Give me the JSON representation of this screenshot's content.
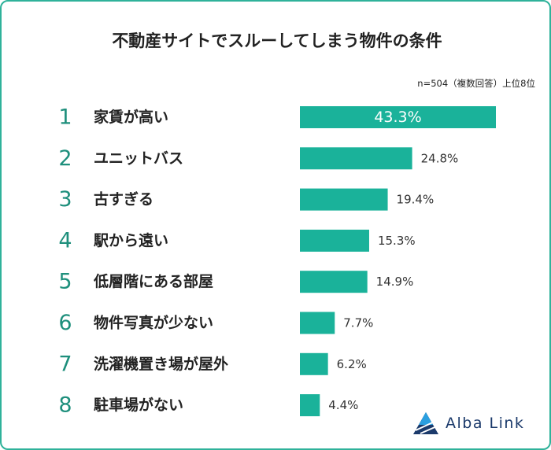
{
  "title": "不動産サイトでスルーしてしまう物件の条件",
  "note": "n=504（複数回答）上位8位",
  "logo_text": "Alba Link",
  "colors": {
    "bar": "#1ab29a",
    "rank": "#1e8f7c",
    "frame": "#2fb29a",
    "logo": "#1b3a6b"
  },
  "chart_data": {
    "type": "bar",
    "orientation": "horizontal",
    "ranks": [
      "1",
      "2",
      "3",
      "4",
      "5",
      "6",
      "7",
      "8"
    ],
    "categories": [
      "家賃が高い",
      "ユニットバス",
      "古すぎる",
      "駅から遠い",
      "低層階にある部屋",
      "物件写真が少ない",
      "洗濯機置き場が屋外",
      "駐車場がない"
    ],
    "values": [
      43.3,
      24.8,
      19.4,
      15.3,
      14.9,
      7.7,
      6.2,
      4.4
    ],
    "value_labels": [
      "43.3%",
      "24.8%",
      "19.4%",
      "15.3%",
      "14.9%",
      "7.7%",
      "6.2%",
      "4.4%"
    ],
    "xlim": [
      0,
      43.3
    ]
  }
}
